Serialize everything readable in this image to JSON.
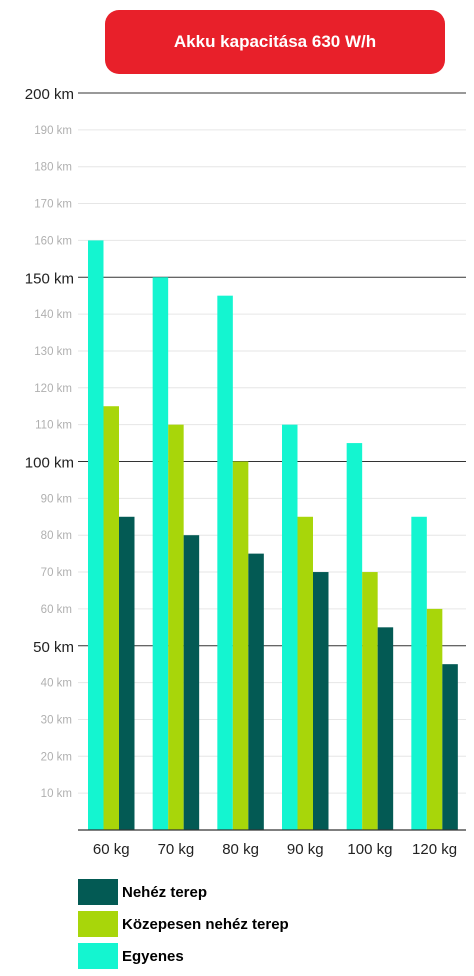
{
  "chart_data": {
    "type": "bar",
    "title": "Akku kapacitása 630 W/h",
    "categories": [
      "60 kg",
      "70 kg",
      "80 kg",
      "90 kg",
      "100 kg",
      "120 kg"
    ],
    "series": [
      {
        "name": "Egyenes",
        "color": "#14f5d0",
        "values": [
          160,
          150,
          145,
          110,
          105,
          85
        ]
      },
      {
        "name": "Közepesen nehéz terep",
        "color": "#a8d60a",
        "values": [
          115,
          110,
          100,
          85,
          70,
          60
        ]
      },
      {
        "name": "Nehéz terep",
        "color": "#035a54",
        "values": [
          85,
          80,
          75,
          70,
          55,
          45
        ]
      }
    ],
    "ylim": [
      0,
      200
    ],
    "yticks": [
      {
        "value": 10,
        "label": "10 km",
        "major": false
      },
      {
        "value": 20,
        "label": "20 km",
        "major": false
      },
      {
        "value": 30,
        "label": "30 km",
        "major": false
      },
      {
        "value": 40,
        "label": "40 km",
        "major": false
      },
      {
        "value": 50,
        "label": "50 km",
        "major": true
      },
      {
        "value": 60,
        "label": "60 km",
        "major": false
      },
      {
        "value": 70,
        "label": "70 km",
        "major": false
      },
      {
        "value": 80,
        "label": "80 km",
        "major": false
      },
      {
        "value": 90,
        "label": "90 km",
        "major": false
      },
      {
        "value": 100,
        "label": "100 km",
        "major": true
      },
      {
        "value": 110,
        "label": "110 km",
        "major": false
      },
      {
        "value": 120,
        "label": "120 km",
        "major": false
      },
      {
        "value": 130,
        "label": "130 km",
        "major": false
      },
      {
        "value": 140,
        "label": "140 km",
        "major": false
      },
      {
        "value": 150,
        "label": "150 km",
        "major": true
      },
      {
        "value": 160,
        "label": "160 km",
        "major": false
      },
      {
        "value": 170,
        "label": "170 km",
        "major": false
      },
      {
        "value": 180,
        "label": "180 km",
        "major": false
      },
      {
        "value": 190,
        "label": "190 km",
        "major": false
      },
      {
        "value": 200,
        "label": "200 km",
        "major": true
      }
    ],
    "grid": true,
    "legend": {
      "position": "bottom-left",
      "items": [
        {
          "label": "Nehéz terep",
          "color": "#035a54"
        },
        {
          "label": "Közepesen nehéz terep",
          "color": "#a8d60a"
        },
        {
          "label": "Egyenes",
          "color": "#14f5d0"
        }
      ]
    }
  }
}
